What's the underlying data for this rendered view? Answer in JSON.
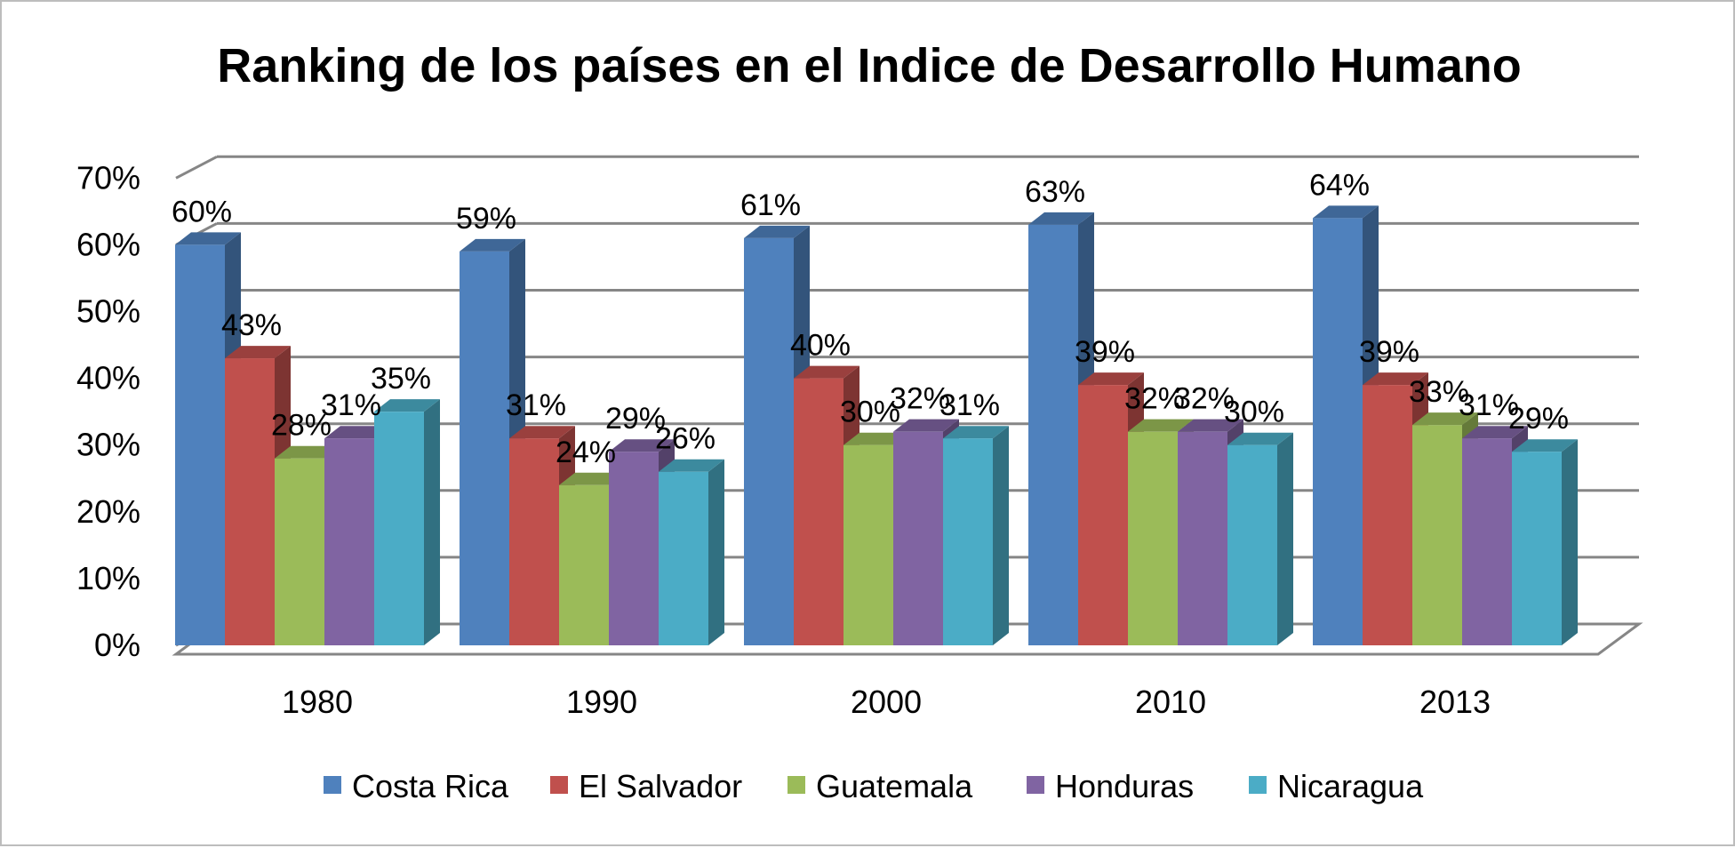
{
  "chart_data": {
    "type": "bar",
    "title": "Ranking de los países en el Indice de Desarrollo Humano",
    "categories": [
      "1980",
      "1990",
      "2000",
      "2010",
      "2013"
    ],
    "series": [
      {
        "name": "Costa Rica",
        "color": "#4F81BD",
        "values": [
          60,
          59,
          61,
          63,
          64
        ],
        "labels": [
          "60%",
          "59%",
          "61%",
          "63%",
          "64%"
        ]
      },
      {
        "name": "El Salvador",
        "color": "#C0504D",
        "values": [
          43,
          31,
          40,
          39,
          39
        ],
        "labels": [
          "43%",
          "31%",
          "40%",
          "39%",
          "39%"
        ]
      },
      {
        "name": "Guatemala",
        "color": "#9BBB59",
        "values": [
          28,
          24,
          30,
          32,
          33
        ],
        "labels": [
          "28%",
          "24%",
          "30%",
          "32%",
          "33%"
        ]
      },
      {
        "name": "Honduras",
        "color": "#8064A2",
        "values": [
          31,
          29,
          32,
          32,
          31
        ],
        "labels": [
          "31%",
          "29%",
          "32%",
          "32%",
          "31%"
        ]
      },
      {
        "name": "Nicaragua",
        "color": "#4BACC6",
        "values": [
          35,
          26,
          31,
          30,
          29
        ],
        "labels": [
          "35%",
          "26%",
          "31%",
          "30%",
          "29%"
        ]
      }
    ],
    "yticks": [
      "0%",
      "10%",
      "20%",
      "30%",
      "40%",
      "50%",
      "60%",
      "70%"
    ],
    "ylim": [
      0,
      70
    ],
    "grid": true,
    "legend": "bottom",
    "style": "3d-clustered-column"
  }
}
